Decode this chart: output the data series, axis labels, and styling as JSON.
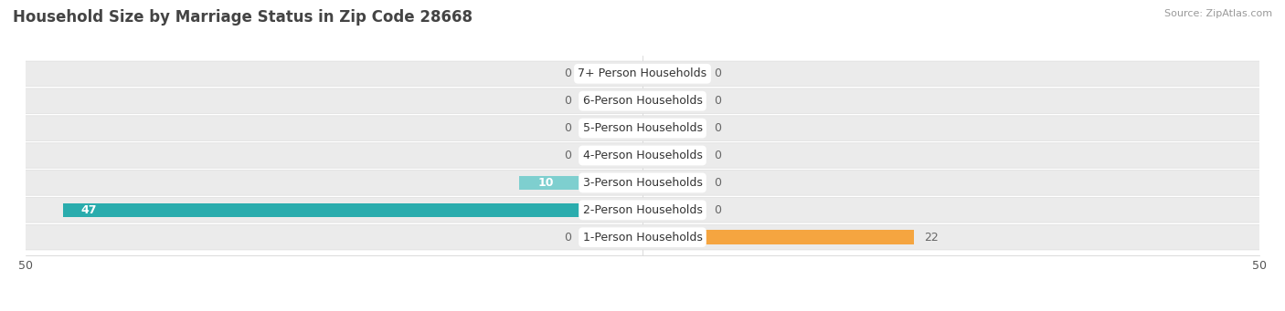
{
  "title": "Household Size by Marriage Status in Zip Code 28668",
  "source": "Source: ZipAtlas.com",
  "categories": [
    "7+ Person Households",
    "6-Person Households",
    "5-Person Households",
    "4-Person Households",
    "3-Person Households",
    "2-Person Households",
    "1-Person Households"
  ],
  "family_values": [
    0,
    0,
    0,
    0,
    10,
    47,
    0
  ],
  "nonfamily_values": [
    0,
    0,
    0,
    0,
    0,
    0,
    22
  ],
  "family_color_light": "#7ecfcf",
  "family_color_dark": "#2aacad",
  "nonfamily_color_light": "#f5c89a",
  "nonfamily_color_dark": "#f5a540",
  "label_color": "#666666",
  "bg_row_color": "#ebebeb",
  "bg_row_edge": "#dddddd",
  "xlim": 50,
  "bar_height": 0.52,
  "stub_size": 5,
  "label_fontsize": 9,
  "title_fontsize": 12,
  "source_fontsize": 8,
  "value_fontsize": 9
}
